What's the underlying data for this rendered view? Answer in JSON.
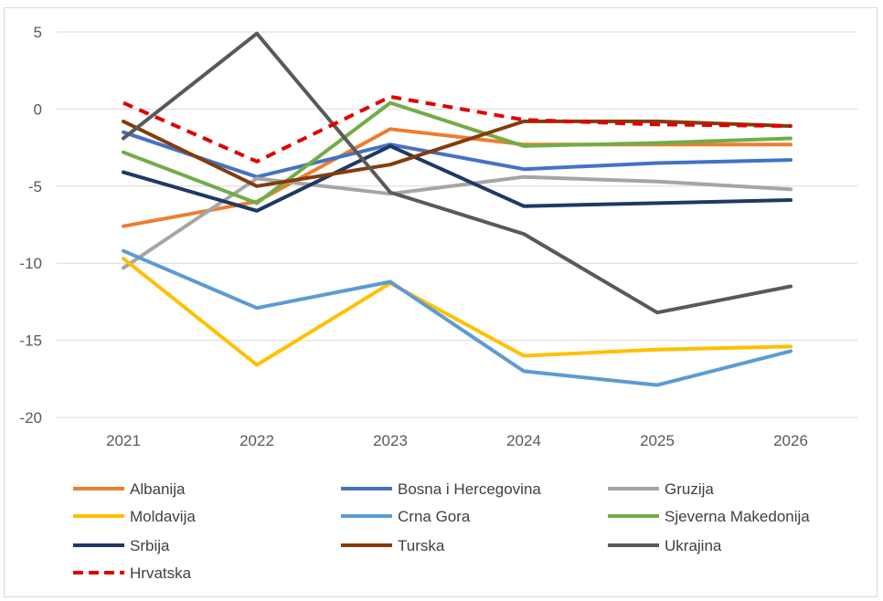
{
  "chart_data": {
    "type": "line",
    "title": "",
    "xlabel": "",
    "ylabel": "",
    "x": [
      "2021",
      "2022",
      "2023",
      "2024",
      "2025",
      "2026"
    ],
    "ylim": [
      -20,
      5
    ],
    "yticks": [
      "5",
      "0",
      "-5",
      "-10",
      "-15",
      "-20"
    ],
    "grid": "horizontal",
    "legend": "bottom",
    "series": [
      {
        "name": "Albanija",
        "color": "#ED7D31",
        "dash": false,
        "values": [
          -7.6,
          -6.0,
          -1.3,
          -2.3,
          -2.3,
          -2.3
        ]
      },
      {
        "name": "Bosna i Hercegovina",
        "color": "#4472C4",
        "dash": false,
        "values": [
          -1.5,
          -4.4,
          -2.3,
          -3.9,
          -3.5,
          -3.3
        ]
      },
      {
        "name": "Gruzija",
        "color": "#A5A5A5",
        "dash": false,
        "values": [
          -10.3,
          -4.5,
          -5.5,
          -4.4,
          -4.7,
          -5.2
        ]
      },
      {
        "name": "Moldavija",
        "color": "#FFC000",
        "dash": false,
        "values": [
          -9.7,
          -16.6,
          -11.3,
          -16.0,
          -15.6,
          -15.4
        ]
      },
      {
        "name": "Crna Gora",
        "color": "#5B9BD5",
        "dash": false,
        "values": [
          -9.2,
          -12.9,
          -11.2,
          -17.0,
          -17.9,
          -15.7
        ]
      },
      {
        "name": "Sjeverna Makedonija",
        "color": "#70AD47",
        "dash": false,
        "values": [
          -2.8,
          -6.1,
          0.4,
          -2.4,
          -2.2,
          -1.9
        ]
      },
      {
        "name": "Srbija",
        "color": "#1F3864",
        "dash": false,
        "values": [
          -4.1,
          -6.6,
          -2.4,
          -6.3,
          -6.1,
          -5.9
        ]
      },
      {
        "name": "Turska",
        "color": "#843C0C",
        "dash": false,
        "values": [
          -0.8,
          -5.0,
          -3.6,
          -0.8,
          -0.8,
          -1.1
        ]
      },
      {
        "name": "Ukrajina",
        "color": "#595959",
        "dash": false,
        "values": [
          -1.9,
          4.9,
          -5.4,
          -8.1,
          -13.2,
          -11.5
        ]
      },
      {
        "name": "Hrvatska",
        "color": "#E00000",
        "dash": true,
        "values": [
          0.4,
          -3.4,
          0.8,
          -0.7,
          -1.0,
          -1.1
        ]
      }
    ]
  }
}
